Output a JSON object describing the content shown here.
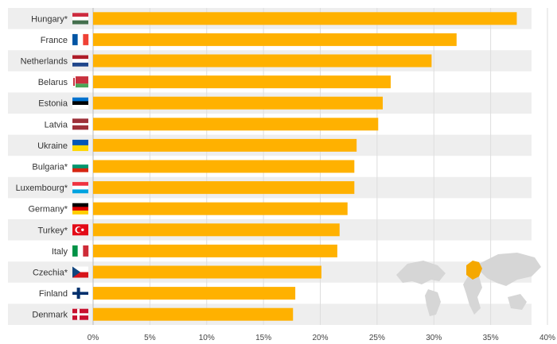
{
  "chart_data": {
    "type": "bar",
    "orientation": "horizontal",
    "categories": [
      "Hungary*",
      "France",
      "Netherlands",
      "Belarus",
      "Estonia",
      "Latvia",
      "Ukraine",
      "Bulgaria*",
      "Luxembourg*",
      "Germany*",
      "Turkey*",
      "Italy",
      "Czechia*",
      "Finland",
      "Denmark"
    ],
    "values": [
      37.3,
      32.0,
      29.8,
      26.2,
      25.5,
      25.1,
      23.2,
      23.0,
      23.0,
      22.4,
      21.7,
      21.5,
      20.1,
      17.8,
      17.6
    ],
    "xlim": [
      0,
      40
    ],
    "xticks": [
      0,
      5,
      10,
      15,
      20,
      25,
      30,
      35,
      40
    ],
    "xtick_labels": [
      "0%",
      "5%",
      "10%",
      "15%",
      "20%",
      "25%",
      "30%",
      "35%",
      "40%"
    ],
    "title": "",
    "xlabel": "",
    "ylabel": "",
    "grid": true,
    "bar_color": "#FFB100",
    "row_band_color": "#EEEEEE",
    "flag_icons": [
      "flag-hungary-icon",
      "flag-france-icon",
      "flag-netherlands-icon",
      "flag-belarus-icon",
      "flag-estonia-icon",
      "flag-latvia-icon",
      "flag-ukraine-icon",
      "flag-bulgaria-icon",
      "flag-luxembourg-icon",
      "flag-germany-icon",
      "flag-turkey-icon",
      "flag-italy-icon",
      "flag-czechia-icon",
      "flag-finland-icon",
      "flag-denmark-icon"
    ],
    "inset": "world-map-europe-highlighted"
  }
}
